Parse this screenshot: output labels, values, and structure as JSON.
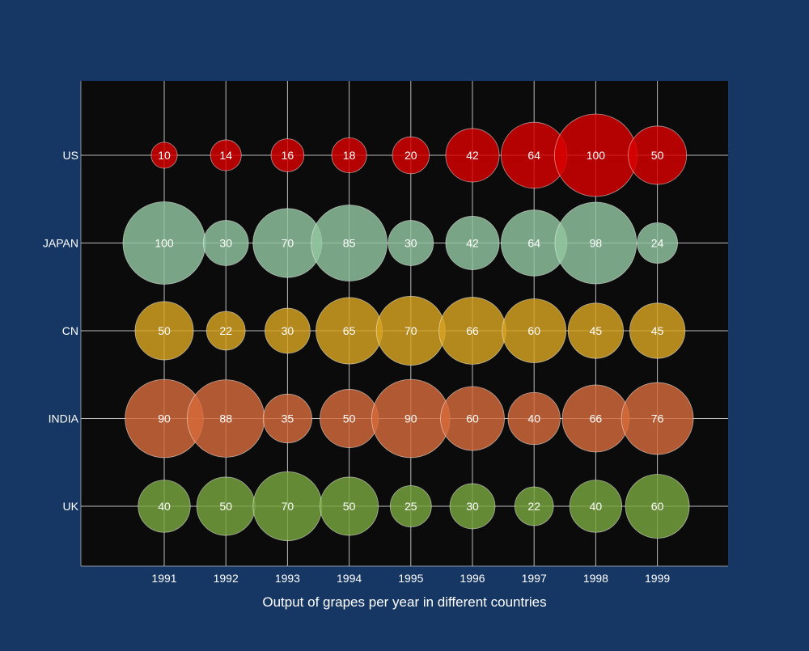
{
  "chart_data": {
    "type": "bubble",
    "title": "",
    "xlabel": "Output of grapes per year in different countries",
    "ylabel": "",
    "x": [
      "1991",
      "1992",
      "1993",
      "1994",
      "1995",
      "1996",
      "1997",
      "1998",
      "1999"
    ],
    "categories": [
      "US",
      "JAPAN",
      "CN",
      "INDIA",
      "UK"
    ],
    "series": [
      {
        "name": "US",
        "color": "#d90000",
        "values": [
          10,
          14,
          16,
          18,
          20,
          42,
          64,
          100,
          50
        ]
      },
      {
        "name": "JAPAN",
        "color": "#93c6a1",
        "values": [
          100,
          30,
          70,
          85,
          30,
          42,
          64,
          98,
          24
        ]
      },
      {
        "name": "CN",
        "color": "#d8a321",
        "values": [
          50,
          22,
          30,
          65,
          70,
          66,
          60,
          45,
          45
        ]
      },
      {
        "name": "INDIA",
        "color": "#d56a3a",
        "values": [
          90,
          88,
          35,
          50,
          90,
          60,
          40,
          66,
          76
        ]
      },
      {
        "name": "UK",
        "color": "#79a63f",
        "values": [
          40,
          50,
          70,
          50,
          25,
          30,
          22,
          40,
          60
        ]
      }
    ],
    "size_max": 100,
    "grid": true,
    "legend": "none"
  },
  "colors": {
    "page_background": "#163763",
    "plot_background": "#0b0b0b",
    "grid": "#d9d9d9",
    "text": "#ffffff"
  }
}
